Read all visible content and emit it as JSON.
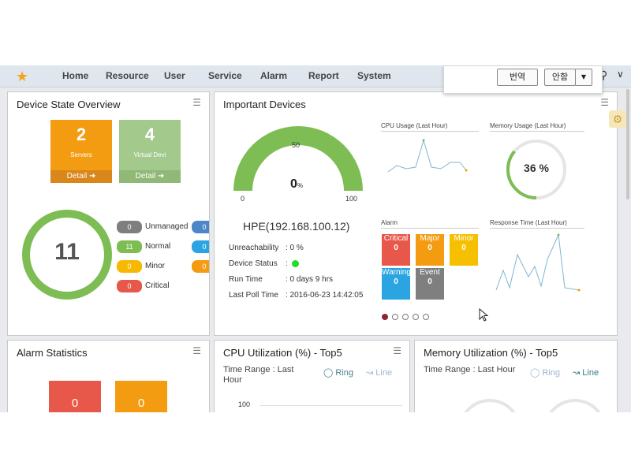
{
  "nav": {
    "items": [
      "Home",
      "Resource",
      "User",
      "Service",
      "Alarm",
      "Report",
      "System"
    ],
    "translate_label": "번역",
    "dropdown_label": "안함"
  },
  "device_state": {
    "title": "Device State Overview",
    "servers": {
      "count": "2",
      "label": "Servers",
      "detail": "Detail"
    },
    "virtual": {
      "count": "4",
      "label": "Virtual Devi",
      "detail": "Detail"
    },
    "total": "11",
    "legend": [
      {
        "count": "0",
        "label": "Unmanaged",
        "color": "#7f7f7f"
      },
      {
        "count": "11",
        "label": "Normal",
        "color": "#7dbd53"
      },
      {
        "count": "0",
        "label": "Minor",
        "color": "#f6b800"
      },
      {
        "count": "0",
        "label": "Critical",
        "color": "#e8584a"
      }
    ],
    "legend2": [
      {
        "count": "0",
        "color": "#4a86c8"
      },
      {
        "count": "0",
        "color": "#2aa5e2"
      },
      {
        "count": "0",
        "color": "#f39c12"
      }
    ]
  },
  "important": {
    "title": "Important Devices",
    "gauge": {
      "min": "0",
      "mid": "50",
      "max": "100",
      "value": "0",
      "unit": "%"
    },
    "device": "HPE(192.168.100.12)",
    "rows": [
      {
        "label": "Unreachability",
        "value": ": 0 %"
      },
      {
        "label": "Device Status",
        "value": ":"
      },
      {
        "label": "Run Time",
        "value": ":  0 days 9 hrs"
      },
      {
        "label": "Last Poll Time",
        "value": ":  2016-06-23 14:42:05"
      }
    ],
    "cpu_title": "CPU Usage (Last Hour)",
    "mem_title": "Memory Usage (Last Hour)",
    "mem_value": "36 %",
    "mem_fraction": 0.36,
    "alarm_title": "Alarm",
    "alarms": [
      {
        "label": "Critical",
        "count": "0",
        "color": "#e8584a"
      },
      {
        "label": "Major",
        "count": "0",
        "color": "#f39c12"
      },
      {
        "label": "Minor",
        "count": "0",
        "color": "#f6c000"
      },
      {
        "label": "Warning",
        "count": "0",
        "color": "#2aa5e2"
      },
      {
        "label": "Event",
        "count": "0",
        "color": "#7f7f7f"
      }
    ],
    "resp_title": "Response Time (Last Hour)"
  },
  "alarm_stats": {
    "title": "Alarm Statistics",
    "values": [
      "0",
      "0"
    ]
  },
  "cpu_top5": {
    "title": "CPU Utilization (%) - Top5",
    "range_line1": "Time Range : Last",
    "range_line2": "Hour",
    "ring": "Ring",
    "line": "Line",
    "tick": "100"
  },
  "mem_top5": {
    "title": "Memory Utilization (%) - Top5",
    "range": "Time Range : Last Hour",
    "ring": "Ring",
    "line": "Line"
  }
}
